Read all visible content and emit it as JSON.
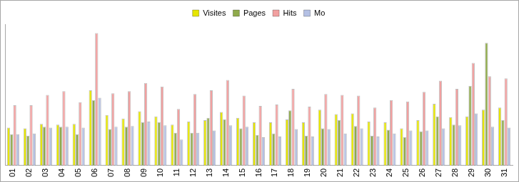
{
  "chart_data": {
    "type": "bar",
    "categories": [
      "01",
      "02",
      "03",
      "04",
      "05",
      "06",
      "07",
      "08",
      "09",
      "10",
      "11",
      "12",
      "13",
      "14",
      "15",
      "16",
      "17",
      "18",
      "19",
      "20",
      "21",
      "22",
      "23",
      "24",
      "25",
      "26",
      "27",
      "28",
      "29",
      "30",
      "31"
    ],
    "series": [
      {
        "name": "Visites",
        "color": "#e6e600",
        "values": [
          51,
          50,
          56,
          55,
          56,
          101,
          68,
          63,
          73,
          66,
          55,
          59,
          61,
          72,
          64,
          58,
          58,
          62,
          58,
          75,
          69,
          70,
          59,
          58,
          50,
          61,
          83,
          65,
          66,
          75,
          78
        ]
      },
      {
        "name": "Pages",
        "color": "#8faa4b",
        "values": [
          42,
          40,
          52,
          52,
          42,
          88,
          49,
          52,
          58,
          58,
          44,
          44,
          64,
          62,
          50,
          41,
          43,
          74,
          40,
          50,
          61,
          53,
          40,
          48,
          38,
          46,
          66,
          55,
          107,
          165,
          61
        ]
      },
      {
        "name": "Hits",
        "color": "#f2a0a0",
        "values": [
          81,
          81,
          95,
          100,
          85,
          178,
          97,
          100,
          111,
          106,
          76,
          96,
          101,
          115,
          94,
          80,
          82,
          103,
          79,
          96,
          95,
          94,
          78,
          88,
          86,
          99,
          114,
          103,
          138,
          120,
          117
        ]
      },
      {
        "name": "Mo",
        "color": "#b4c0e4",
        "values": [
          42,
          43,
          51,
          52,
          51,
          91,
          52,
          53,
          59,
          54,
          35,
          44,
          47,
          54,
          52,
          38,
          39,
          49,
          39,
          49,
          43,
          50,
          39,
          43,
          47,
          47,
          50,
          54,
          70,
          52,
          51
        ]
      }
    ],
    "ylim": [
      0,
      190
    ],
    "grid": false,
    "legend": "top",
    "tick_labels": "x"
  }
}
